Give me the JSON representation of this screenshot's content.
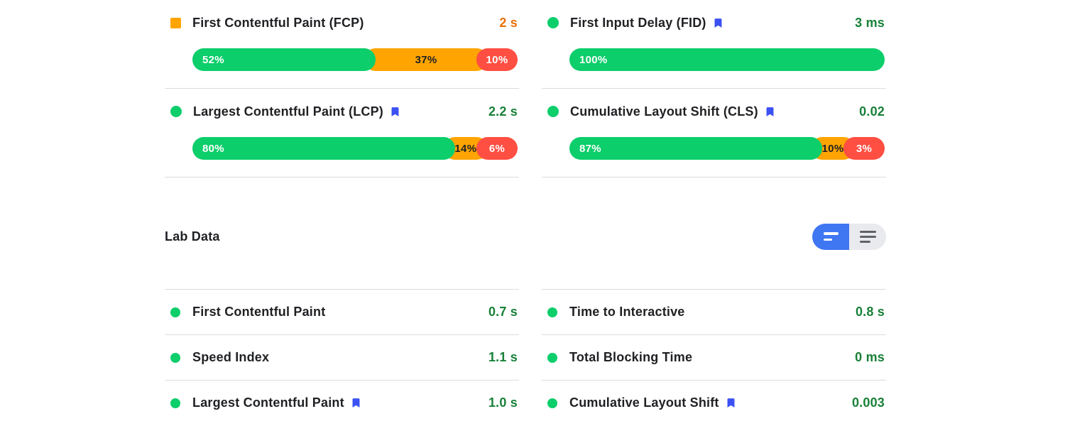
{
  "colors": {
    "good": "#0cce6b",
    "average": "#ffa400",
    "poor": "#ff4e42",
    "good_text": "#188038",
    "average_text": "#e8710a",
    "bookmark_blue": "#3b51f3",
    "toggle_active_blue": "#3f76f2",
    "toggle_inactive_gray": "#e8eaed",
    "divider": "#dadce0"
  },
  "field_metrics": [
    {
      "label": "First Contentful Paint (FCP)",
      "value": "2 s",
      "rating": "average",
      "icon": "orange-square",
      "bookmark": false,
      "distribution": [
        {
          "rating": "good",
          "pct": 52,
          "label": "52%"
        },
        {
          "rating": "average",
          "pct": 37,
          "label": "37%"
        },
        {
          "rating": "poor",
          "pct": 10,
          "label": "10%"
        }
      ]
    },
    {
      "label": "First Input Delay (FID)",
      "value": "3 ms",
      "rating": "good",
      "icon": "green-circle",
      "bookmark": true,
      "distribution": [
        {
          "rating": "good",
          "pct": 100,
          "label": "100%"
        }
      ]
    },
    {
      "label": "Largest Contentful Paint (LCP)",
      "value": "2.2 s",
      "rating": "good",
      "icon": "green-circle",
      "bookmark": true,
      "distribution": [
        {
          "rating": "good",
          "pct": 80,
          "label": "80%"
        },
        {
          "rating": "average",
          "pct": 14,
          "label": "14%"
        },
        {
          "rating": "poor",
          "pct": 6,
          "label": "6%"
        }
      ]
    },
    {
      "label": "Cumulative Layout Shift (CLS)",
      "value": "0.02",
      "rating": "good",
      "icon": "green-circle",
      "bookmark": true,
      "distribution": [
        {
          "rating": "good",
          "pct": 87,
          "label": "87%"
        },
        {
          "rating": "average",
          "pct": 10,
          "label": "10%"
        },
        {
          "rating": "poor",
          "pct": 3,
          "label": "3%"
        }
      ]
    }
  ],
  "lab": {
    "title": "Lab Data",
    "toggle": {
      "active": "condensed",
      "left_icon": "condensed-view-icon",
      "right_icon": "expanded-view-icon"
    },
    "metrics": [
      {
        "label": "First Contentful Paint",
        "value": "0.7 s",
        "bookmark": false
      },
      {
        "label": "Time to Interactive",
        "value": "0.8 s",
        "bookmark": false
      },
      {
        "label": "Speed Index",
        "value": "1.1 s",
        "bookmark": false
      },
      {
        "label": "Total Blocking Time",
        "value": "0 ms",
        "bookmark": false
      },
      {
        "label": "Largest Contentful Paint",
        "value": "1.0 s",
        "bookmark": true
      },
      {
        "label": "Cumulative Layout Shift",
        "value": "0.003",
        "bookmark": true
      }
    ]
  }
}
